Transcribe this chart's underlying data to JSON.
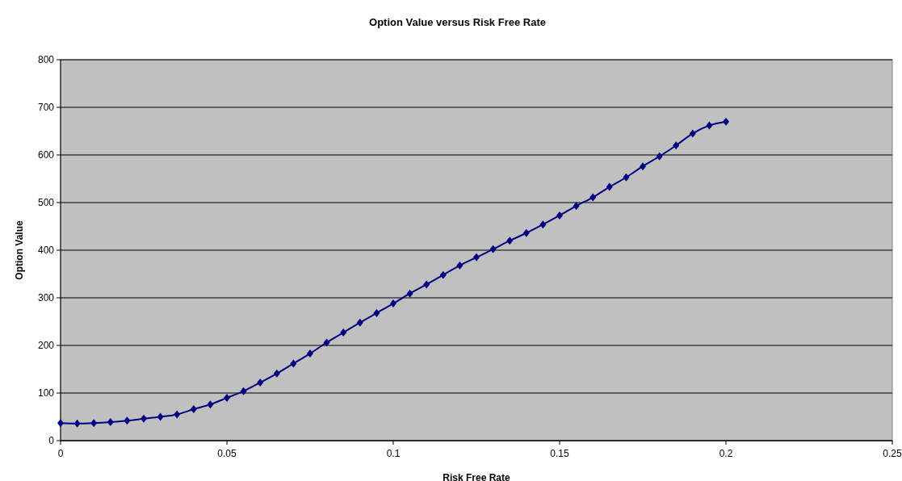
{
  "chart_data": {
    "type": "line",
    "title": "Option Value versus Risk Free Rate",
    "xlabel": "Risk Free Rate",
    "ylabel": "Option Value",
    "x": [
      0,
      0.005,
      0.01,
      0.015,
      0.02,
      0.025,
      0.03,
      0.035,
      0.04,
      0.045,
      0.05,
      0.055,
      0.06,
      0.065,
      0.07,
      0.075,
      0.08,
      0.085,
      0.09,
      0.095,
      0.1,
      0.105,
      0.11,
      0.115,
      0.12,
      0.125,
      0.13,
      0.135,
      0.14,
      0.145,
      0.15,
      0.155,
      0.16,
      0.165,
      0.17,
      0.175,
      0.18,
      0.185,
      0.19,
      0.195,
      0.2
    ],
    "series": [
      {
        "color": "#000080",
        "values": [
          37,
          36,
          37,
          39,
          42,
          46,
          50,
          55,
          66,
          76,
          90,
          104,
          122,
          141,
          162,
          183,
          206,
          227,
          248,
          268,
          288,
          309,
          328,
          348,
          368,
          385,
          402,
          420,
          436,
          454,
          473,
          493,
          511,
          533,
          553,
          576,
          597,
          620,
          645,
          662,
          670
        ]
      }
    ],
    "xlim": [
      0,
      0.25
    ],
    "xticks": [
      0,
      0.05,
      0.1,
      0.15,
      0.2,
      0.25
    ],
    "ylim": [
      0,
      800
    ],
    "yticks": [
      0,
      100,
      200,
      300,
      400,
      500,
      600,
      700,
      800
    ],
    "grid": "y",
    "marker": "diamond",
    "line_style": "solid"
  }
}
